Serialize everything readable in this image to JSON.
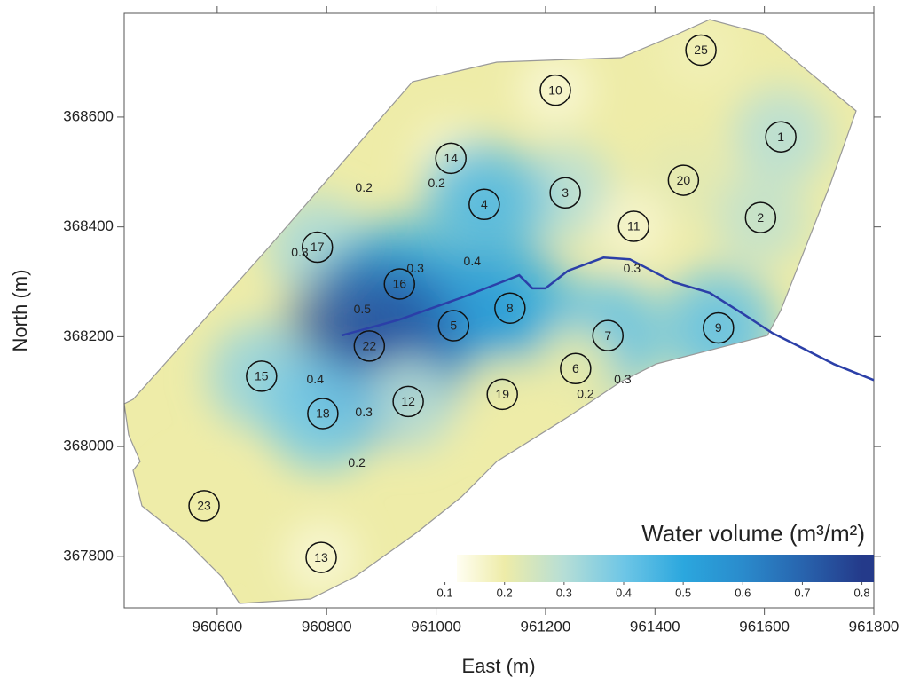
{
  "chart_data": {
    "type": "contour",
    "xlabel": "East (m)",
    "ylabel": "North (m)",
    "xlim": [
      960430,
      961800
    ],
    "ylim": [
      367706,
      368789
    ],
    "xticks": [
      960600,
      960800,
      961000,
      961200,
      961400,
      961600,
      961800
    ],
    "yticks": [
      367800,
      368000,
      368200,
      368400,
      368600
    ],
    "labels": [
      "25",
      "10",
      "1",
      "14",
      "20",
      "3",
      "4",
      "2",
      "11",
      "17",
      "16",
      "8",
      "5",
      "9",
      "7",
      "22",
      "6",
      "15",
      "19",
      "12",
      "18",
      "23",
      "13"
    ],
    "x": [
      961484,
      961218,
      961630,
      961027,
      961452,
      961236,
      961088,
      961593,
      961361,
      960783,
      960933,
      961135,
      961032,
      961516,
      961314,
      960878,
      961255,
      960681,
      961121,
      960949,
      960793,
      960576,
      960790
    ],
    "y": [
      368722,
      368649,
      368564,
      368525,
      368485,
      368462,
      368441,
      368417,
      368401,
      368363,
      368296,
      368252,
      368220,
      368216,
      368202,
      368183,
      368142,
      368128,
      368095,
      368082,
      368060,
      367892,
      367798
    ],
    "values": [
      0.18,
      0.14,
      0.3,
      0.15,
      0.22,
      0.3,
      0.45,
      0.28,
      0.15,
      0.32,
      0.5,
      0.5,
      0.55,
      0.42,
      0.42,
      0.75,
      0.2,
      0.35,
      0.2,
      0.3,
      0.4,
      0.2,
      0.14
    ],
    "contour_labels": {
      "values": [
        0.2,
        0.2,
        0.3,
        0.3,
        0.4,
        0.3,
        0.5,
        0.4,
        0.3,
        0.2,
        0.3,
        0.2
      ],
      "x": [
        960868,
        961001,
        960751,
        960962,
        961066,
        961358,
        960865,
        960779,
        960868,
        961273,
        961341,
        960855
      ],
      "y": [
        368470,
        368478,
        368352,
        368323,
        368336,
        368323,
        368249,
        368121,
        368061,
        368094,
        368121,
        367969
      ]
    },
    "river": {
      "color": "#2b3fa8",
      "x": [
        960827,
        960933,
        961046,
        961111,
        961152,
        961176,
        961200,
        961241,
        961306,
        961354,
        961435,
        961500,
        961565,
        961614,
        961662,
        961727,
        961800
      ],
      "y": [
        368202,
        368231,
        368271,
        368296,
        368312,
        368288,
        368288,
        368320,
        368344,
        368341,
        368299,
        368280,
        368239,
        368207,
        368183,
        368150,
        368121
      ]
    },
    "colorbar": {
      "label": "Water volume (m³/m²)",
      "lim": [
        0.12,
        0.82
      ],
      "ticks": [
        0.1,
        0.2,
        0.3,
        0.4,
        0.5,
        0.6,
        0.7,
        0.8
      ],
      "colors": [
        "#fffef2",
        "#eeeca8",
        "#b6ded6",
        "#6ec6e6",
        "#2ba7de",
        "#2a8bcc",
        "#2864ae",
        "#243a8a"
      ]
    }
  }
}
